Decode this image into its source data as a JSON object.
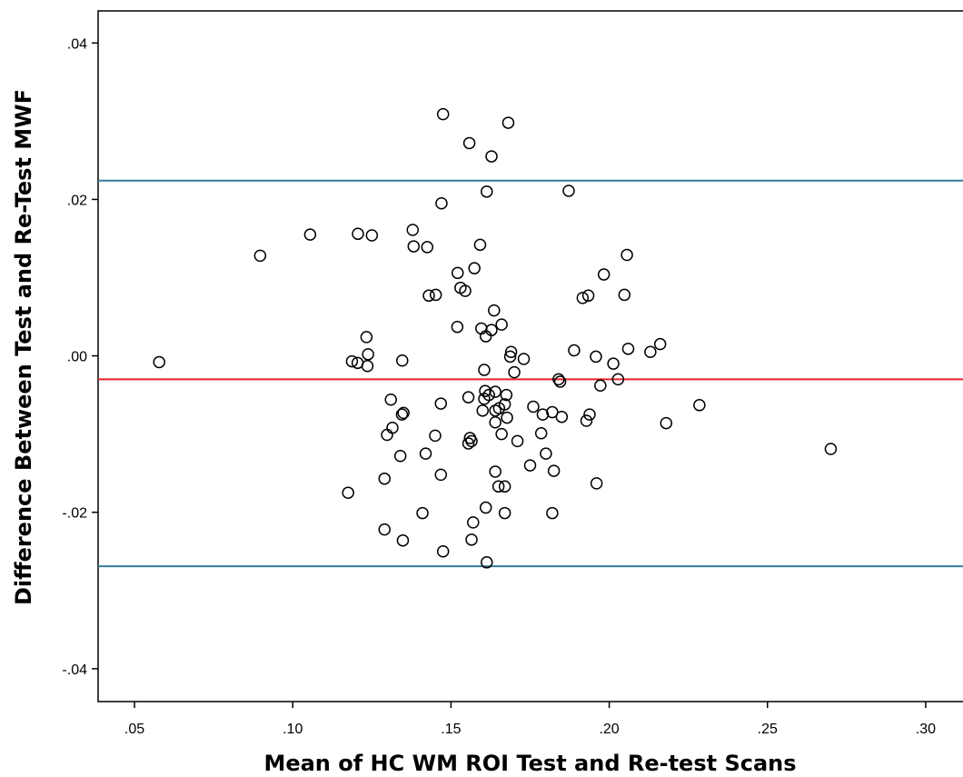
{
  "chart_data": {
    "type": "scatter",
    "title": "",
    "xlabel": "Mean of HC WM ROI Test and Re-test Scans",
    "ylabel": "Difference Between Test and Re-Test MWF",
    "xlim": [
      0.0385,
      0.3115
    ],
    "ylim": [
      -0.0442,
      0.0441
    ],
    "xticks": [
      0.05,
      0.1,
      0.15,
      0.2,
      0.25,
      0.3
    ],
    "xtick_labels": [
      ".05",
      ".10",
      ".15",
      ".20",
      ".25",
      ".30"
    ],
    "yticks": [
      -0.04,
      -0.02,
      0.0,
      0.02,
      0.04
    ],
    "ytick_labels": [
      "-.04",
      "-.02",
      ".00",
      ".02",
      ".04"
    ],
    "grid": false,
    "legend": "none",
    "reference_lines": [
      {
        "y": 0.0224,
        "color": "#3b7a9a"
      },
      {
        "y": -0.003,
        "color": "#e8202a"
      },
      {
        "y": -0.0269,
        "color": "#3b7a9a"
      }
    ],
    "series": [
      {
        "marker": "hollow-circle",
        "color": "#000000",
        "points": [
          [
            0.0578,
            -0.0008
          ],
          [
            0.0897,
            0.0128
          ],
          [
            0.1055,
            0.0155
          ],
          [
            0.1206,
            0.0156
          ],
          [
            0.125,
            0.0154
          ],
          [
            0.1379,
            0.0161
          ],
          [
            0.1382,
            0.014
          ],
          [
            0.1425,
            0.0139
          ],
          [
            0.1187,
            -0.0007
          ],
          [
            0.1205,
            -0.0009
          ],
          [
            0.1236,
            -0.0013
          ],
          [
            0.1233,
            0.0024
          ],
          [
            0.1238,
            0.0002
          ],
          [
            0.1346,
            -0.0006
          ],
          [
            0.1475,
            0.0309
          ],
          [
            0.1558,
            0.0272
          ],
          [
            0.1681,
            0.0298
          ],
          [
            0.1628,
            0.0255
          ],
          [
            0.1613,
            0.021
          ],
          [
            0.147,
            0.0195
          ],
          [
            0.1872,
            0.0211
          ],
          [
            0.1592,
            0.0142
          ],
          [
            0.1574,
            0.0112
          ],
          [
            0.1521,
            0.0106
          ],
          [
            0.153,
            0.0087
          ],
          [
            0.1545,
            0.0083
          ],
          [
            0.143,
            0.0077
          ],
          [
            0.1452,
            0.0078
          ],
          [
            0.1636,
            0.0058
          ],
          [
            0.152,
            0.0037
          ],
          [
            0.1596,
            0.0035
          ],
          [
            0.1628,
            0.0033
          ],
          [
            0.166,
            0.004
          ],
          [
            0.161,
            0.0025
          ],
          [
            0.169,
            0.0005
          ],
          [
            0.1687,
            -0.0001
          ],
          [
            0.173,
            -0.0004
          ],
          [
            0.17,
            -0.0021
          ],
          [
            0.1605,
            -0.0018
          ],
          [
            0.1889,
            0.0007
          ],
          [
            0.1958,
            -0.0001
          ],
          [
            0.1972,
            -0.0038
          ],
          [
            0.2013,
            -0.001
          ],
          [
            0.2028,
            -0.003
          ],
          [
            0.206,
            0.0009
          ],
          [
            0.213,
            0.0005
          ],
          [
            0.2161,
            0.0015
          ],
          [
            0.1983,
            0.0104
          ],
          [
            0.1916,
            0.0074
          ],
          [
            0.1934,
            0.0077
          ],
          [
            0.2048,
            0.0078
          ],
          [
            0.2056,
            0.0129
          ],
          [
            0.184,
            -0.003
          ],
          [
            0.1845,
            -0.0033
          ],
          [
            0.1608,
            -0.0045
          ],
          [
            0.162,
            -0.005
          ],
          [
            0.164,
            -0.0046
          ],
          [
            0.1555,
            -0.0053
          ],
          [
            0.1468,
            -0.0061
          ],
          [
            0.1675,
            -0.005
          ],
          [
            0.164,
            -0.007
          ],
          [
            0.1652,
            -0.0067
          ],
          [
            0.167,
            -0.0062
          ],
          [
            0.1605,
            -0.0055
          ],
          [
            0.16,
            -0.007
          ],
          [
            0.164,
            -0.0085
          ],
          [
            0.1677,
            -0.0079
          ],
          [
            0.176,
            -0.0065
          ],
          [
            0.179,
            -0.0075
          ],
          [
            0.182,
            -0.0072
          ],
          [
            0.185,
            -0.0078
          ],
          [
            0.1928,
            -0.0083
          ],
          [
            0.1938,
            -0.0075
          ],
          [
            0.131,
            -0.0056
          ],
          [
            0.1345,
            -0.0075
          ],
          [
            0.135,
            -0.0073
          ],
          [
            0.1315,
            -0.0092
          ],
          [
            0.1298,
            -0.0101
          ],
          [
            0.145,
            -0.0102
          ],
          [
            0.156,
            -0.0105
          ],
          [
            0.1555,
            -0.0112
          ],
          [
            0.1565,
            -0.0109
          ],
          [
            0.166,
            -0.01
          ],
          [
            0.171,
            -0.0109
          ],
          [
            0.1785,
            -0.0099
          ],
          [
            0.175,
            -0.014
          ],
          [
            0.18,
            -0.0125
          ],
          [
            0.1825,
            -0.0147
          ],
          [
            0.218,
            -0.0086
          ],
          [
            0.2285,
            -0.0063
          ],
          [
            0.27,
            -0.0119
          ],
          [
            0.134,
            -0.0128
          ],
          [
            0.142,
            -0.0125
          ],
          [
            0.1468,
            -0.0152
          ],
          [
            0.164,
            -0.0148
          ],
          [
            0.129,
            -0.0157
          ],
          [
            0.1175,
            -0.0175
          ],
          [
            0.165,
            -0.0167
          ],
          [
            0.167,
            -0.0167
          ],
          [
            0.196,
            -0.0163
          ],
          [
            0.141,
            -0.0201
          ],
          [
            0.161,
            -0.0194
          ],
          [
            0.167,
            -0.0201
          ],
          [
            0.182,
            -0.0201
          ],
          [
            0.157,
            -0.0213
          ],
          [
            0.129,
            -0.0222
          ],
          [
            0.1348,
            -0.0236
          ],
          [
            0.1565,
            -0.0235
          ],
          [
            0.1475,
            -0.025
          ],
          [
            0.1613,
            -0.0264
          ]
        ]
      }
    ]
  },
  "colors": {
    "mean_line": "#e8202a",
    "limit_lines": "#3b7a9a",
    "markers": "#000000"
  }
}
